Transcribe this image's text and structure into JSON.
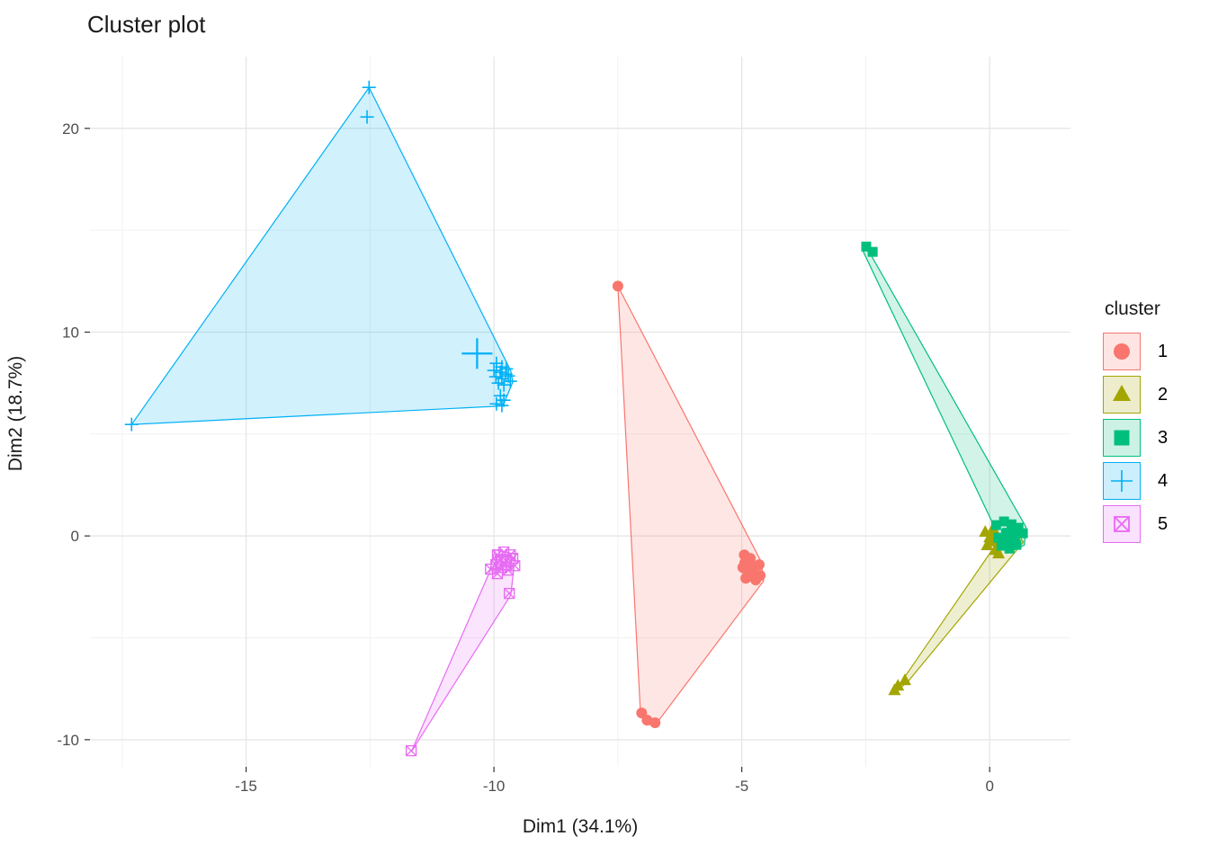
{
  "chart_data": {
    "type": "scatter",
    "title": "Cluster plot",
    "xlabel": "Dim1 (34.1%)",
    "ylabel": "Dim2 (18.7%)",
    "legend_title": "cluster",
    "legend_position": "right",
    "grid": true,
    "xlim": [
      -18.15,
      1.63
    ],
    "ylim": [
      -11.33,
      23.52
    ],
    "x_ticks": [
      {
        "v": -15,
        "label": "-15"
      },
      {
        "v": -10,
        "label": "-10"
      },
      {
        "v": -5,
        "label": "-5"
      },
      {
        "v": 0,
        "label": "0"
      }
    ],
    "y_ticks": [
      {
        "v": -10,
        "label": "-10"
      },
      {
        "v": 0,
        "label": "0"
      },
      {
        "v": 10,
        "label": "10"
      },
      {
        "v": 20,
        "label": "20"
      }
    ],
    "x_minor": [
      -17.5,
      -12.5,
      -7.5,
      -2.5
    ],
    "y_minor": [
      -5,
      5,
      15
    ],
    "clusters": [
      {
        "name": "1",
        "color": "#F8766D",
        "shape": "circle",
        "centroid": [
          -4.85,
          -1.62
        ],
        "hull": [
          [
            -7.5,
            12.26
          ],
          [
            -4.61,
            -1.26
          ],
          [
            -4.56,
            -2.21
          ],
          [
            -6.74,
            -9.26
          ],
          [
            -7.04,
            -8.88
          ]
        ],
        "points": [
          [
            -7.5,
            12.26
          ],
          [
            -4.95,
            -0.93
          ],
          [
            -4.83,
            -1.1
          ],
          [
            -4.94,
            -1.32
          ],
          [
            -4.79,
            -1.46
          ],
          [
            -4.9,
            -1.68
          ],
          [
            -4.76,
            -1.81
          ],
          [
            -4.86,
            -1.99
          ],
          [
            -4.72,
            -2.16
          ],
          [
            -4.63,
            -1.94
          ],
          [
            -4.65,
            -1.41
          ],
          [
            -4.98,
            -1.55
          ],
          [
            -4.92,
            -2.08
          ],
          [
            -7.02,
            -8.69
          ],
          [
            -6.91,
            -9.04
          ],
          [
            -6.75,
            -9.17
          ]
        ]
      },
      {
        "name": "2",
        "color": "#A3A500",
        "shape": "triangle",
        "centroid": [
          0.05,
          -0.2
        ],
        "hull": [
          [
            -1.94,
            -7.72
          ],
          [
            0.42,
            0.62
          ],
          [
            0.68,
            -0.3
          ],
          [
            -1.66,
            -7.18
          ]
        ],
        "points": [
          [
            -1.85,
            -7.37
          ],
          [
            -1.71,
            -7.1
          ],
          [
            -1.92,
            -7.59
          ],
          [
            -0.09,
            0.18
          ],
          [
            0.07,
            0.35
          ],
          [
            0.0,
            -0.09
          ],
          [
            0.15,
            -0.26
          ],
          [
            -0.05,
            -0.48
          ],
          [
            0.11,
            -0.71
          ],
          [
            0.25,
            -0.48
          ],
          [
            0.18,
            -0.88
          ]
        ]
      },
      {
        "name": "3",
        "color": "#00BF7D",
        "shape": "square",
        "centroid": [
          0.4,
          0.02
        ],
        "hull": [
          [
            -2.52,
            14.32
          ],
          [
            0.73,
            0.45
          ],
          [
            0.7,
            -0.45
          ],
          [
            0.35,
            -0.85
          ],
          [
            -2.55,
            13.95
          ]
        ],
        "points": [
          [
            -2.49,
            14.2
          ],
          [
            -2.36,
            13.94
          ],
          [
            0.13,
            0.53
          ],
          [
            0.29,
            0.71
          ],
          [
            0.44,
            0.57
          ],
          [
            0.58,
            0.4
          ],
          [
            0.67,
            0.13
          ],
          [
            0.51,
            0.0
          ],
          [
            0.33,
            0.09
          ],
          [
            0.18,
            -0.09
          ],
          [
            0.36,
            -0.31
          ],
          [
            0.54,
            -0.44
          ],
          [
            0.4,
            -0.62
          ],
          [
            0.24,
            -0.48
          ]
        ]
      },
      {
        "name": "4",
        "color": "#00B0F6",
        "shape": "cross",
        "centroid": [
          -10.34,
          8.95
        ],
        "hull": [
          [
            -12.52,
            22.01
          ],
          [
            -9.66,
            8.1
          ],
          [
            -9.62,
            7.55
          ],
          [
            -9.82,
            6.38
          ],
          [
            -17.31,
            5.47
          ]
        ],
        "points": [
          [
            -12.52,
            22.01
          ],
          [
            -12.56,
            20.56
          ],
          [
            -9.95,
            8.47
          ],
          [
            -9.84,
            8.29
          ],
          [
            -9.75,
            8.2
          ],
          [
            -10.0,
            8.12
          ],
          [
            -9.87,
            8.03
          ],
          [
            -9.76,
            7.94
          ],
          [
            -9.96,
            7.81
          ],
          [
            -9.84,
            7.72
          ],
          [
            -9.71,
            7.85
          ],
          [
            -9.91,
            7.5
          ],
          [
            -9.8,
            7.41
          ],
          [
            -9.67,
            7.59
          ],
          [
            -9.87,
            6.88
          ],
          [
            -9.8,
            6.66
          ],
          [
            -9.95,
            6.48
          ],
          [
            -9.84,
            6.4
          ],
          [
            -17.31,
            5.47
          ]
        ]
      },
      {
        "name": "5",
        "color": "#E76BF3",
        "shape": "boxed-x",
        "centroid": [
          -9.8,
          -1.3
        ],
        "hull": [
          [
            -9.98,
            -0.68
          ],
          [
            -9.57,
            -0.9
          ],
          [
            -9.66,
            -2.9
          ],
          [
            -11.67,
            -10.6
          ],
          [
            -10.09,
            -1.78
          ]
        ],
        "points": [
          [
            -9.93,
            -0.93
          ],
          [
            -9.8,
            -0.79
          ],
          [
            -9.67,
            -0.93
          ],
          [
            -9.87,
            -1.15
          ],
          [
            -9.75,
            -1.24
          ],
          [
            -9.62,
            -1.1
          ],
          [
            -9.96,
            -1.41
          ],
          [
            -9.84,
            -1.54
          ],
          [
            -9.71,
            -1.68
          ],
          [
            -9.58,
            -1.46
          ],
          [
            -10.07,
            -1.63
          ],
          [
            -9.93,
            -1.85
          ],
          [
            -9.69,
            -2.82
          ],
          [
            -11.67,
            -10.54
          ]
        ]
      }
    ]
  }
}
